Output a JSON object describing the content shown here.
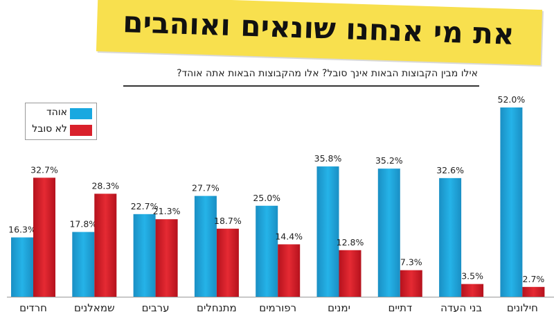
{
  "header": {
    "title": "את מי אנחנו שונאים ואוהבים",
    "subtitle": "אילו מבין הקבוצות הבאות אינך סובל? אלו מהקבוצות הבאות אתה אוהד?"
  },
  "colors": {
    "like": "#19a8e0",
    "dislike": "#d9202b"
  },
  "chart_data": {
    "type": "bar",
    "title": "את מי אנחנו שונאים ואוהבים",
    "subtitle": "אילו מבין הקבוצות הבאות אינך סובל? אלו מהקבוצות הבאות אתה אוהד?",
    "xlabel": "",
    "ylabel": "",
    "ylim": [
      0,
      55
    ],
    "value_suffix": "%",
    "legend_position": "top-left",
    "categories": [
      "חרדים",
      "שמאלנים",
      "ערבים",
      "מתנחלים",
      "רפורמים",
      "ימנים",
      "דתיים",
      "בני העדה",
      "חילונים"
    ],
    "series": [
      {
        "name": "אוהד",
        "values": [
          16.3,
          17.8,
          22.7,
          27.7,
          25.0,
          35.8,
          35.2,
          32.6,
          52.0
        ]
      },
      {
        "name": "לא סובל",
        "values": [
          32.7,
          28.3,
          21.3,
          18.7,
          14.4,
          12.8,
          7.3,
          3.5,
          2.7
        ]
      }
    ]
  }
}
